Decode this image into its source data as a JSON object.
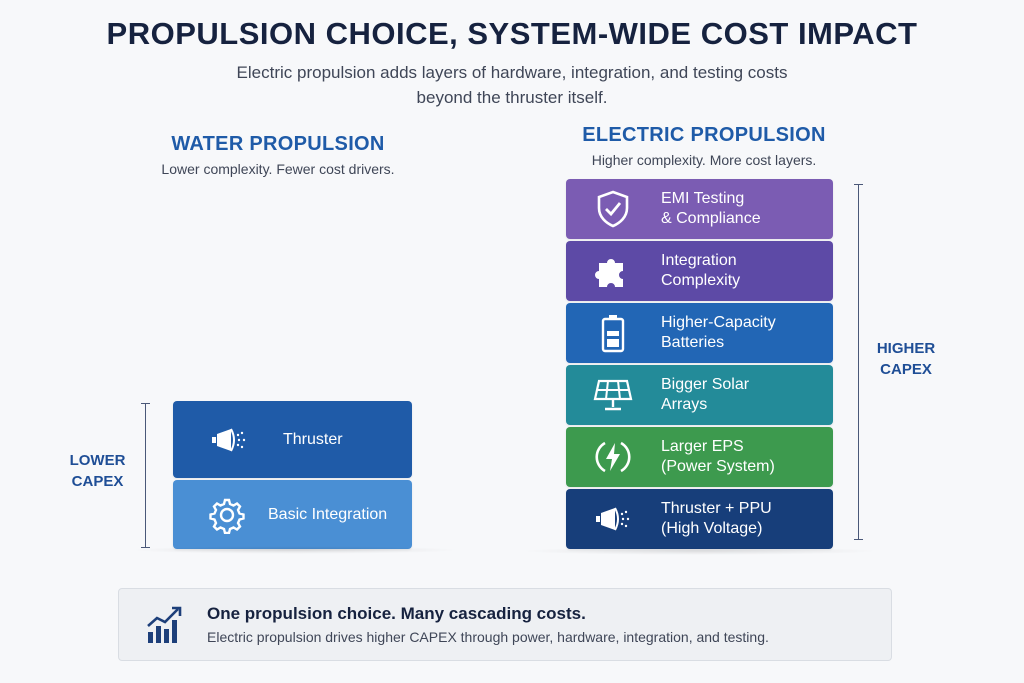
{
  "header": {
    "title": "PROPULSION CHOICE, SYSTEM-WIDE COST IMPACT",
    "subtitle_line1": "Electric propulsion adds layers of hardware, integration, and testing costs",
    "subtitle_line2": "beyond the thruster itself."
  },
  "water": {
    "heading": "WATER PROPULSION",
    "subheading": "Lower complexity. Fewer cost drivers.",
    "capex_label": "LOWER\nCAPEX",
    "blocks": [
      {
        "label": "Thruster",
        "icon": "thruster-icon",
        "color": "#1f5ba8"
      },
      {
        "label": "Basic Integration",
        "icon": "gear-icon",
        "color": "#4a8fd4"
      }
    ]
  },
  "electric": {
    "heading": "ELECTRIC PROPULSION",
    "subheading": "Higher complexity. More cost layers.",
    "capex_label": "HIGHER\nCAPEX",
    "blocks": [
      {
        "label": "EMI Testing\n& Compliance",
        "icon": "shield-check-icon",
        "color": "#7b5cb3"
      },
      {
        "label": "Integration\nComplexity",
        "icon": "puzzle-icon",
        "color": "#5d4aa6"
      },
      {
        "label": "Higher-Capacity\nBatteries",
        "icon": "battery-icon",
        "color": "#2266b5"
      },
      {
        "label": "Bigger Solar\nArrays",
        "icon": "solar-panel-icon",
        "color": "#238b99"
      },
      {
        "label": "Larger EPS\n(Power System)",
        "icon": "lightning-icon",
        "color": "#3d9a4e"
      },
      {
        "label": "Thruster + PPU\n(High Voltage)",
        "icon": "thruster-icon",
        "color": "#173e7a"
      }
    ]
  },
  "callout": {
    "title": "One propulsion choice. Many cascading costs.",
    "text": "Electric propulsion drives higher CAPEX through power, hardware, integration, and testing.",
    "icon": "growth-chart-icon"
  }
}
